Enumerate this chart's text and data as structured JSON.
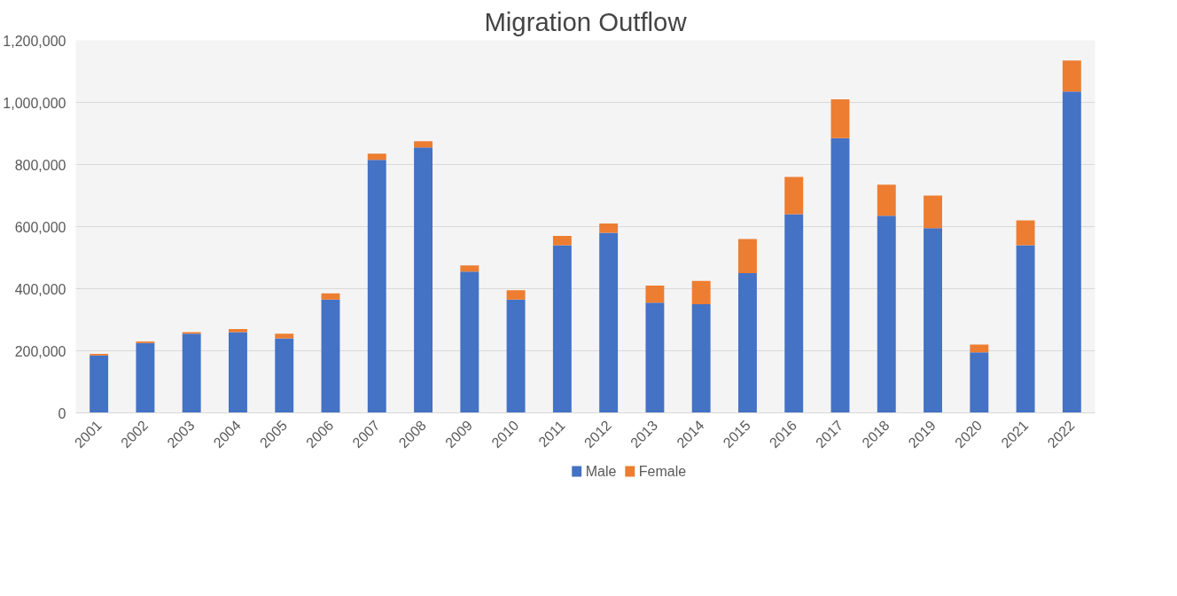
{
  "chart_data": {
    "type": "bar",
    "title": "Migration Outflow",
    "stacked": true,
    "categories": [
      "2001",
      "2002",
      "2003",
      "2004",
      "2005",
      "2006",
      "2007",
      "2008",
      "2009",
      "2010",
      "2011",
      "2012",
      "2013",
      "2014",
      "2015",
      "2016",
      "2017",
      "2018",
      "2019",
      "2020",
      "2021",
      "2022"
    ],
    "series": [
      {
        "name": "Male",
        "color": "#4472c4",
        "values": [
          185000,
          225000,
          255000,
          260000,
          240000,
          365000,
          815000,
          855000,
          455000,
          365000,
          540000,
          580000,
          355000,
          350000,
          450000,
          640000,
          885000,
          635000,
          595000,
          195000,
          540000,
          1035000
        ]
      },
      {
        "name": "Female",
        "color": "#ed7d31",
        "values": [
          5000,
          5000,
          5000,
          10000,
          15000,
          20000,
          20000,
          20000,
          20000,
          30000,
          30000,
          30000,
          55000,
          75000,
          110000,
          120000,
          125000,
          100000,
          105000,
          25000,
          80000,
          100000
        ]
      }
    ],
    "ylim": [
      0,
      1200000
    ],
    "yticks": [
      {
        "value": 0,
        "label": "0"
      },
      {
        "value": 200000,
        "label": "200,000"
      },
      {
        "value": 400000,
        "label": "400,000"
      },
      {
        "value": 600000,
        "label": "600,000"
      },
      {
        "value": 800000,
        "label": "800,000"
      },
      {
        "value": 1000000,
        "label": "1,000,000"
      },
      {
        "value": 1200000,
        "label": "1,200,000"
      }
    ],
    "grid": "y",
    "legend": "bottom"
  }
}
